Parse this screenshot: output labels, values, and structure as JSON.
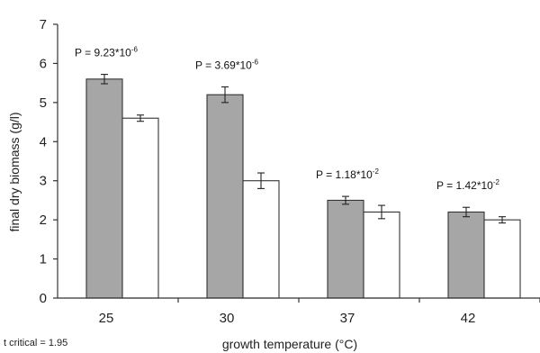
{
  "chart_data": {
    "type": "bar",
    "xlabel": "growth temperature (°C)",
    "ylabel": "final dry biomass (g/l)",
    "categories": [
      "25",
      "30",
      "37",
      "42"
    ],
    "ylim": [
      0,
      7
    ],
    "yticks": [
      0,
      1,
      2,
      3,
      4,
      5,
      6,
      7
    ],
    "grid": false,
    "legend": "none",
    "series": [
      {
        "color": "#a6a6a6",
        "values": [
          5.6,
          5.2,
          2.5,
          2.2
        ],
        "errors": [
          0.12,
          0.2,
          0.1,
          0.12
        ]
      },
      {
        "color": "#ffffff",
        "values": [
          4.6,
          3.0,
          2.2,
          2.0
        ],
        "errors": [
          0.08,
          0.2,
          0.17,
          0.08
        ]
      }
    ],
    "annotations": [
      {
        "category": "25",
        "base": "P = 9.23*10",
        "exp": "-6"
      },
      {
        "category": "30",
        "base": "P = 3.69*10",
        "exp": "-6"
      },
      {
        "category": "37",
        "base": "P = 1.18*10",
        "exp": "-2"
      },
      {
        "category": "42",
        "base": "P = 1.42*10",
        "exp": "-2"
      }
    ],
    "note": "t critical = 1.95"
  }
}
